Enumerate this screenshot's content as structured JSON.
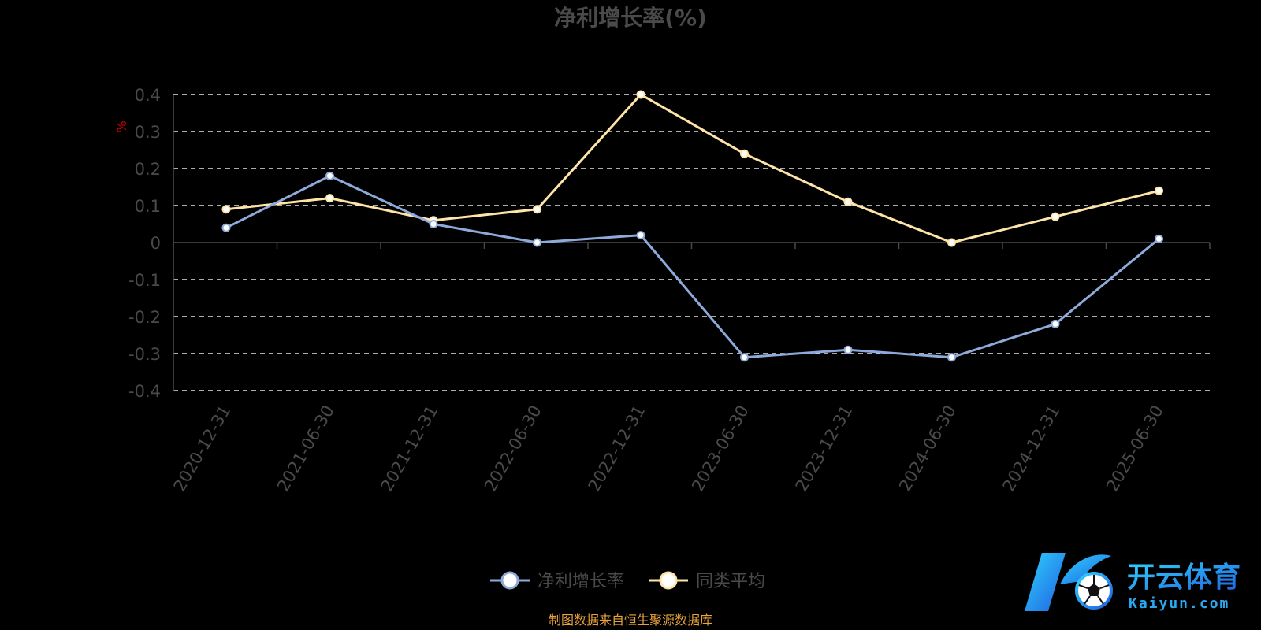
{
  "chart_data": {
    "type": "line",
    "title": "净利增长率(%)",
    "ylabel": "%",
    "xlabel": "",
    "categories": [
      "2020-12-31",
      "2021-06-30",
      "2021-12-31",
      "2022-06-30",
      "2022-12-31",
      "2023-06-30",
      "2023-12-31",
      "2024-06-30",
      "2024-12-31",
      "2025-06-30"
    ],
    "series": [
      {
        "name": "净利增长率",
        "color": "#8eaadb",
        "values": [
          0.04,
          0.18,
          0.05,
          0.0,
          0.02,
          -0.31,
          -0.29,
          -0.31,
          -0.22,
          0.01
        ]
      },
      {
        "name": "同类平均",
        "color": "#ffe4a8",
        "values": [
          0.09,
          0.12,
          0.06,
          0.09,
          0.4,
          0.24,
          0.11,
          0.0,
          0.07,
          0.14
        ]
      }
    ],
    "ylim": [
      -0.4,
      0.4
    ],
    "yticks": [
      0.4,
      0.3,
      0.2,
      0.1,
      0,
      -0.1,
      -0.2,
      -0.3,
      -0.4
    ],
    "ytick_labels": [
      "0.4",
      "0.3",
      "0.2",
      "0.1",
      "0",
      "-0.1",
      "-0.2",
      "-0.3",
      "-0.4"
    ],
    "grid": true,
    "legend_position": "bottom-center"
  },
  "source_note": "制图数据来自恒生聚源数据库",
  "watermark": {
    "cn_text": "开云体育",
    "en_text": "Kaiyun.com",
    "icon": "soccer-ball-logo-icon"
  }
}
